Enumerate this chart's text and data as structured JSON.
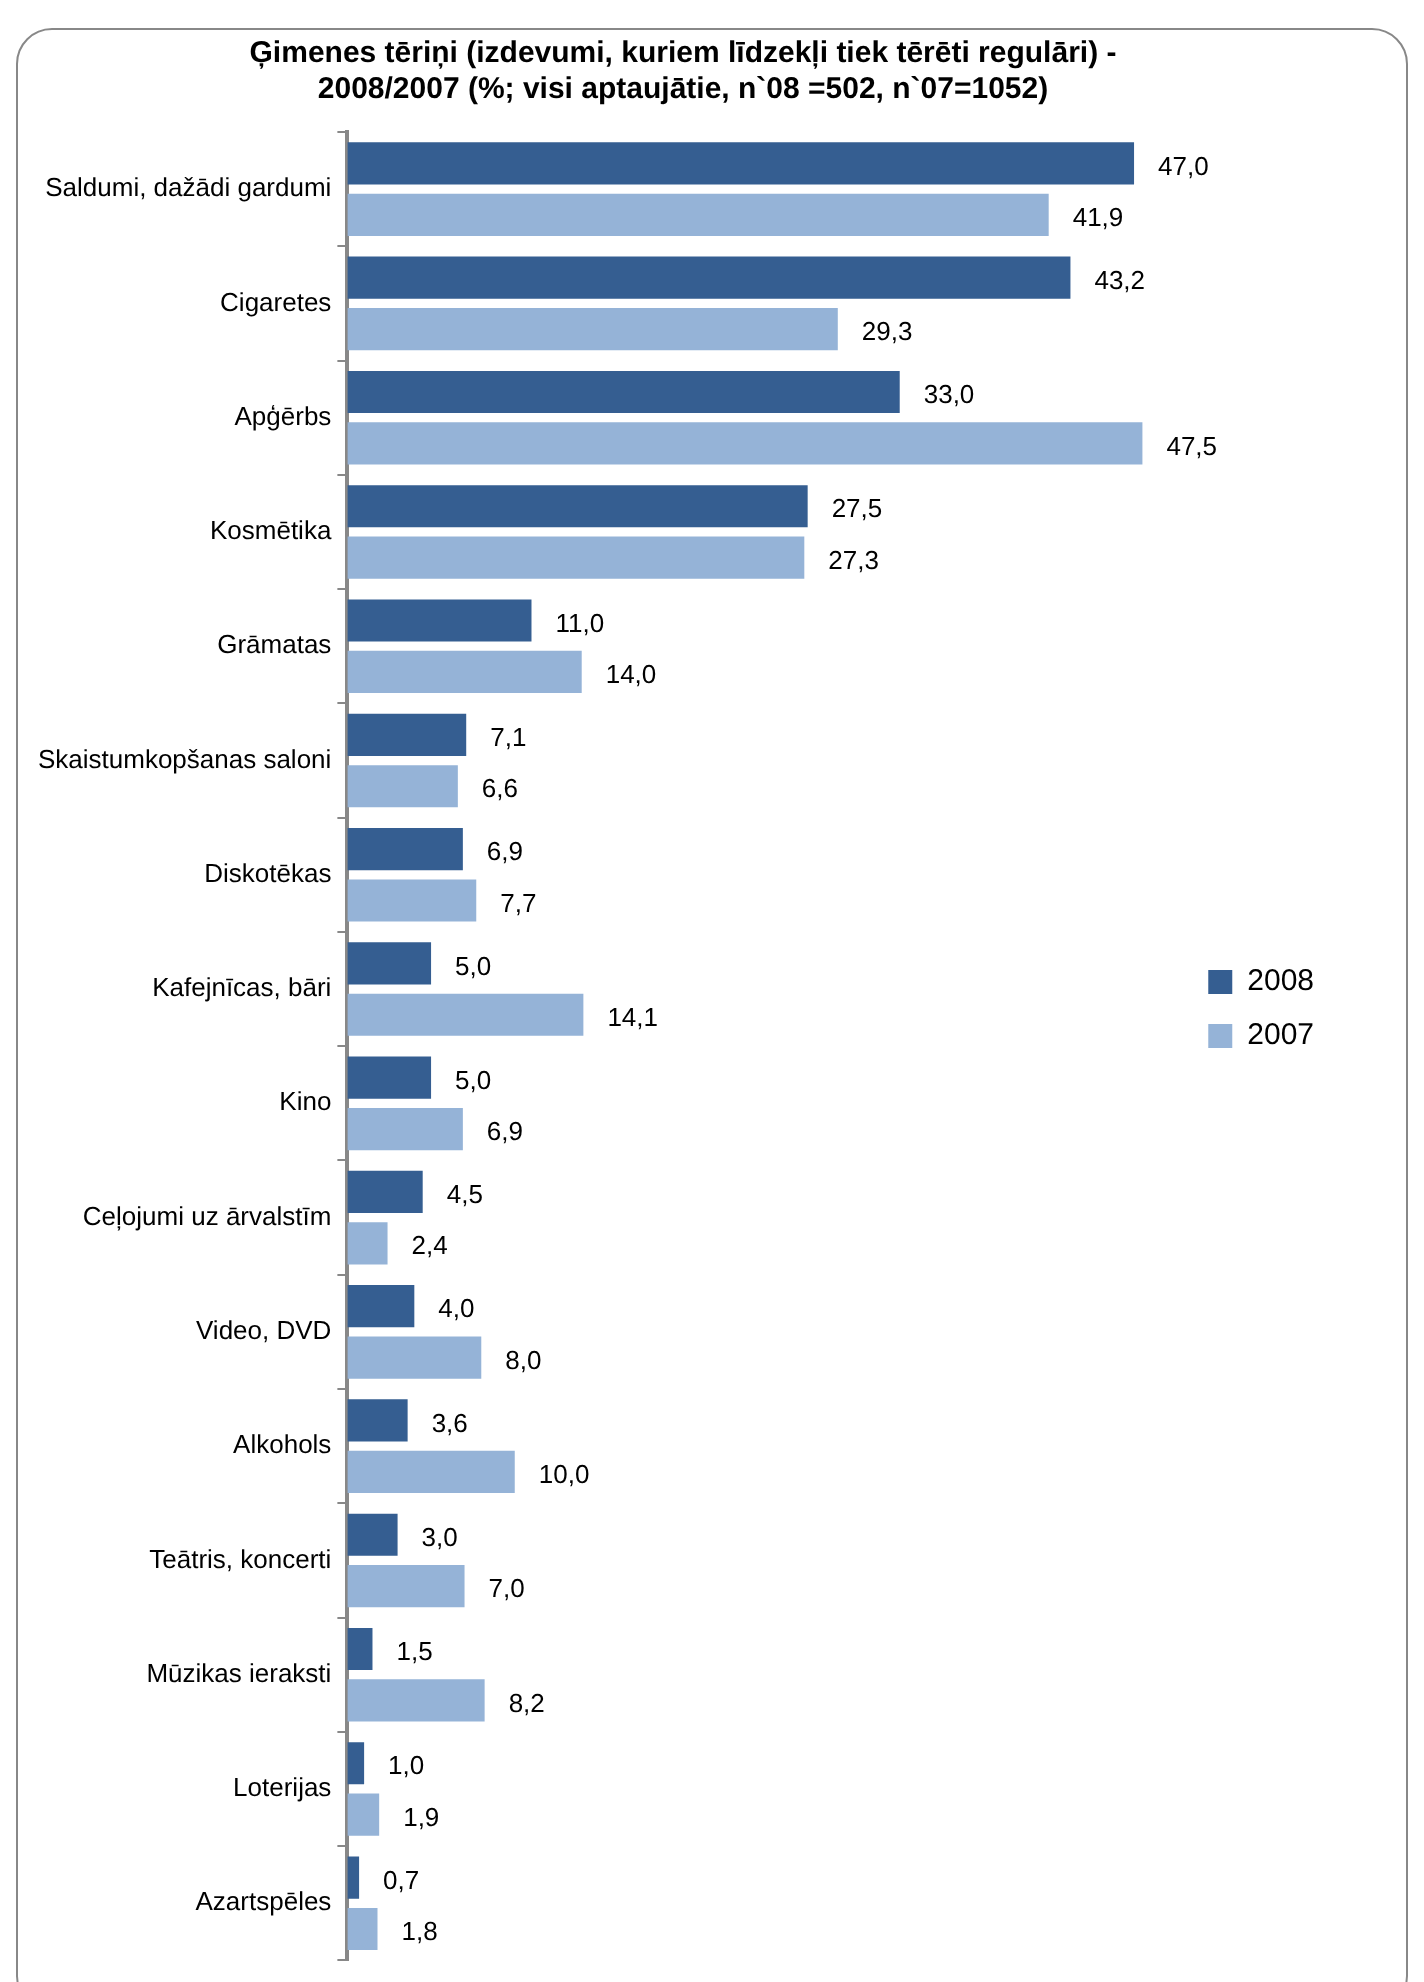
{
  "chart_data": {
    "type": "bar",
    "orientation": "horizontal",
    "title": "Ģimenes tēriņi (izdevumi, kuriem līdzekļi tiek tērēti regulāri) -\n2008/2007 (%; visi aptaujātie, n`08 =502, n`07=1052)",
    "categories": [
      "Saldumi, dažādi gardumi",
      "Cigaretes",
      "Apģērbs",
      "Kosmētika",
      "Grāmatas",
      "Skaistumkopšanas saloni",
      "Diskotēkas",
      "Kafejnīcas, bāri",
      "Kino",
      "Ceļojumi uz ārvalstīm",
      "Video, DVD",
      "Alkohols",
      "Teātris, koncerti",
      "Mūzikas ieraksti",
      "Loterijas",
      "Azartspēles"
    ],
    "series": [
      {
        "name": "2008",
        "color": "#355e91",
        "values": [
          47.0,
          43.2,
          33.0,
          27.5,
          11.0,
          7.1,
          6.9,
          5.0,
          5.0,
          4.5,
          4.0,
          3.6,
          3.0,
          1.5,
          1.0,
          0.7
        ],
        "value_labels": [
          "47,0",
          "43,2",
          "33,0",
          "27,5",
          "11,0",
          "7,1",
          "6,9",
          "5,0",
          "5,0",
          "4,5",
          "4,0",
          "3,6",
          "3,0",
          "1,5",
          "1,0",
          "0,7"
        ]
      },
      {
        "name": "2007",
        "color": "#95b3d7",
        "values": [
          41.9,
          29.3,
          47.5,
          27.3,
          14.0,
          6.6,
          7.7,
          14.1,
          6.9,
          2.4,
          8.0,
          10.0,
          7.0,
          8.2,
          1.9,
          1.8
        ],
        "value_labels": [
          "41,9",
          "29,3",
          "47,5",
          "27,3",
          "14,0",
          "6,6",
          "7,7",
          "14,1",
          "6,9",
          "2,4",
          "8,0",
          "10,0",
          "7,0",
          "8,2",
          "1,9",
          "1,8"
        ]
      }
    ],
    "tick_labels": "y",
    "grid": false,
    "legend": "right"
  }
}
